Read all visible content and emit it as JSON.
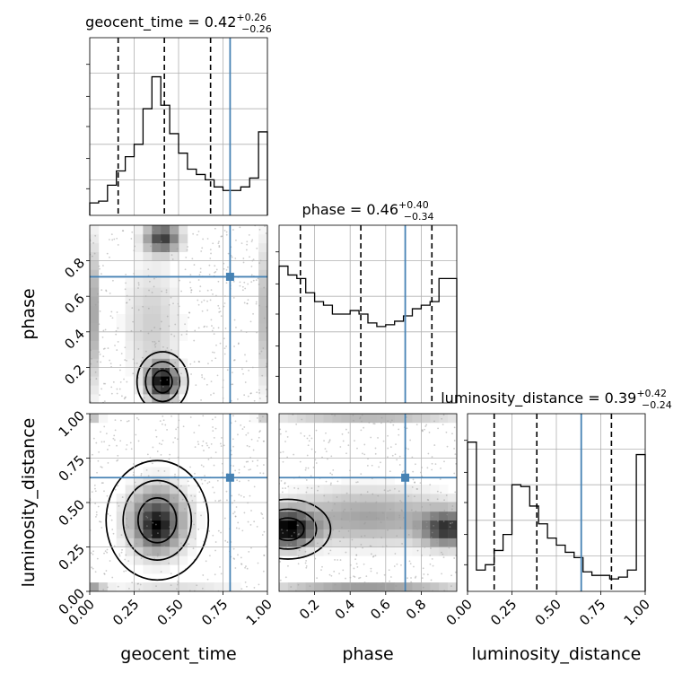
{
  "chart_data": {
    "type": "corner",
    "parameters": [
      {
        "name": "geocent_time",
        "axis_label": "geocent_time",
        "range": [
          0.0,
          1.0
        ],
        "ticks": [
          "0.00",
          "0.25",
          "0.50",
          "0.75",
          "1.00"
        ],
        "tick_values": [
          0.0,
          0.25,
          0.5,
          0.75,
          1.0
        ],
        "median": "0.42",
        "plus": "+0.26",
        "minus": "−0.26",
        "quantiles": [
          0.16,
          0.42,
          0.68
        ],
        "truth": 0.79,
        "title_prefix": "geocent_time = ",
        "hist_bins": [
          0.07,
          0.08,
          0.17,
          0.25,
          0.33,
          0.4,
          0.6,
          0.78,
          0.62,
          0.46,
          0.35,
          0.26,
          0.23,
          0.2,
          0.16,
          0.14,
          0.14,
          0.16,
          0.21,
          0.47
        ]
      },
      {
        "name": "phase",
        "axis_label": "phase",
        "range": [
          0.0,
          1.0
        ],
        "ticks": [
          "0.2",
          "0.4",
          "0.6",
          "0.8"
        ],
        "tick_values": [
          0.2,
          0.4,
          0.6,
          0.8
        ],
        "median": "0.46",
        "plus": "+0.40",
        "minus": "−0.34",
        "quantiles": [
          0.12,
          0.46,
          0.86
        ],
        "truth": 0.71,
        "title_prefix": "phase = ",
        "hist_bins": [
          0.77,
          0.72,
          0.7,
          0.62,
          0.57,
          0.55,
          0.5,
          0.5,
          0.52,
          0.5,
          0.45,
          0.43,
          0.44,
          0.46,
          0.49,
          0.53,
          0.55,
          0.57,
          0.7,
          0.7
        ]
      },
      {
        "name": "luminosity_distance",
        "axis_label": "luminosity_distance",
        "range": [
          0.0,
          1.0
        ],
        "ticks": [
          "0.00",
          "0.25",
          "0.50",
          "0.75",
          "1.00"
        ],
        "tick_values": [
          0.0,
          0.25,
          0.5,
          0.75,
          1.0
        ],
        "median": "0.39",
        "plus": "+0.42",
        "minus": "−0.24",
        "quantiles": [
          0.15,
          0.39,
          0.81
        ],
        "truth": 0.64,
        "title_prefix": "luminosity_distance = ",
        "hist_bins": [
          0.84,
          0.12,
          0.15,
          0.23,
          0.32,
          0.6,
          0.59,
          0.48,
          0.38,
          0.3,
          0.26,
          0.22,
          0.19,
          0.11,
          0.09,
          0.09,
          0.07,
          0.08,
          0.12,
          0.77
        ]
      }
    ],
    "truth_color": "#4682b4",
    "grid": true,
    "density_colormap": "grayscale"
  }
}
